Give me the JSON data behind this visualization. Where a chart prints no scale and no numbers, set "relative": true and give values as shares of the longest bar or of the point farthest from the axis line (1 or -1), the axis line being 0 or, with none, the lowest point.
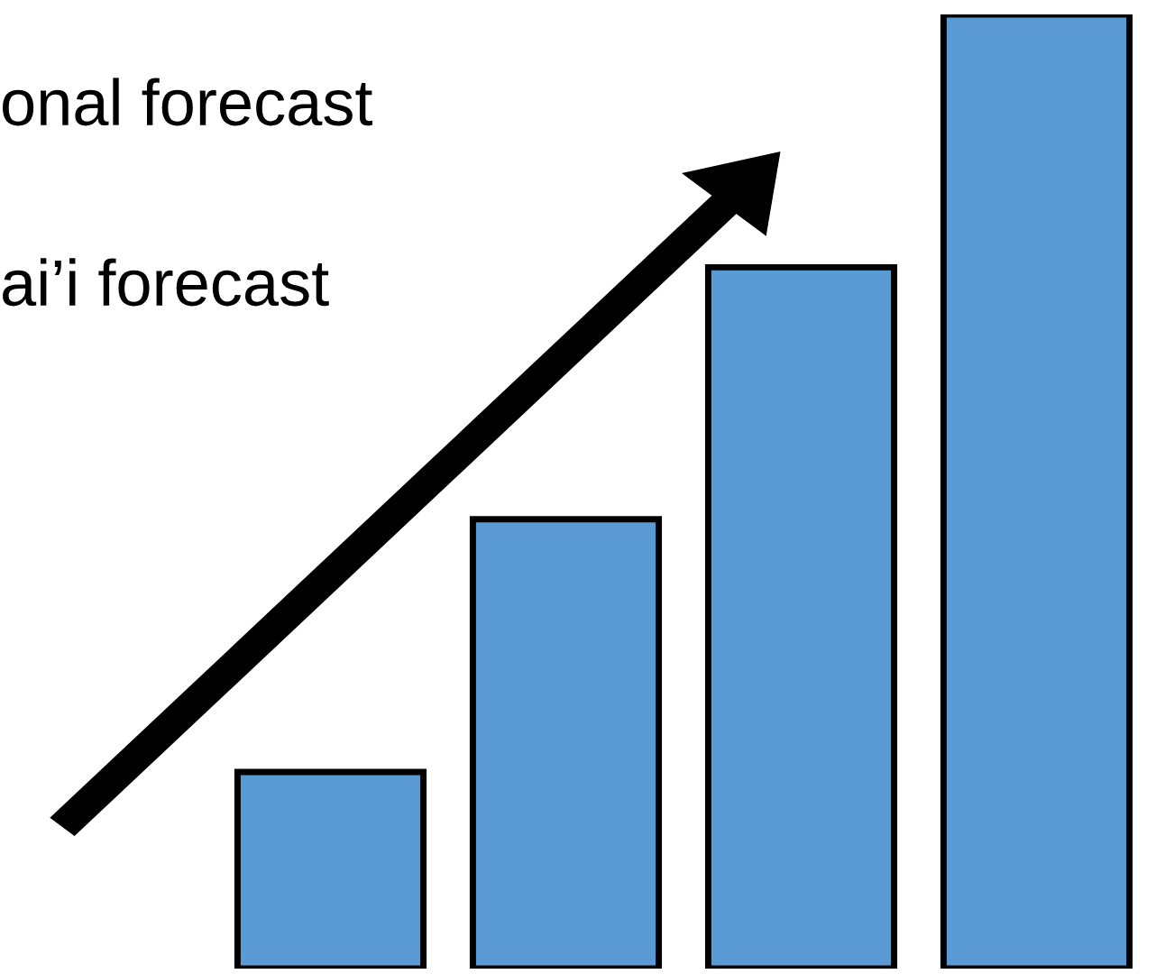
{
  "chart_data": {
    "type": "bar",
    "relative": true,
    "categories": [
      null,
      null,
      null,
      null
    ],
    "values": [
      0.206,
      0.471,
      0.735,
      1
    ],
    "color": "#5b9bd5",
    "annotations": [
      "onal forecast",
      "ai’i forecast"
    ]
  }
}
